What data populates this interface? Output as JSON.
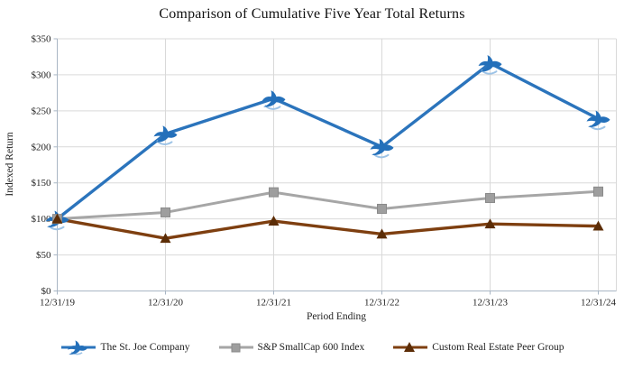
{
  "header": {
    "title": "Comparison of Cumulative Five Year Total Returns"
  },
  "chart_data": {
    "type": "line",
    "title": "Comparison of Cumulative Five Year Total Returns",
    "xlabel": "Period Ending",
    "ylabel": "Indexed Return",
    "categories": [
      "12/31/19",
      "12/31/20",
      "12/31/21",
      "12/31/22",
      "12/31/23",
      "12/31/24"
    ],
    "ylim": [
      0,
      350
    ],
    "y_tick_step": 50,
    "y_tick_labels": [
      "$0",
      "$50",
      "$100",
      "$150",
      "$200",
      "$250",
      "$300",
      "$350"
    ],
    "grid": true,
    "legend_position": "bottom",
    "series": [
      {
        "name": "The St. Joe Company",
        "marker": "bird",
        "color": "#2B74BC",
        "marker_color": "#2470BA",
        "accent_color": "#9DC3E6",
        "values": [
          100,
          218,
          267,
          200,
          316,
          239
        ]
      },
      {
        "name": "S&P SmallCap 600 Index",
        "marker": "square",
        "color": "#A6A6A6",
        "marker_color": "#9E9E9E",
        "values": [
          100,
          109,
          137,
          114,
          129,
          138
        ]
      },
      {
        "name": "Custom Real Estate Peer Group",
        "marker": "triangle",
        "color": "#7E3F10",
        "marker_color": "#5C2D07",
        "values": [
          100,
          73,
          97,
          79,
          93,
          90
        ]
      }
    ]
  }
}
